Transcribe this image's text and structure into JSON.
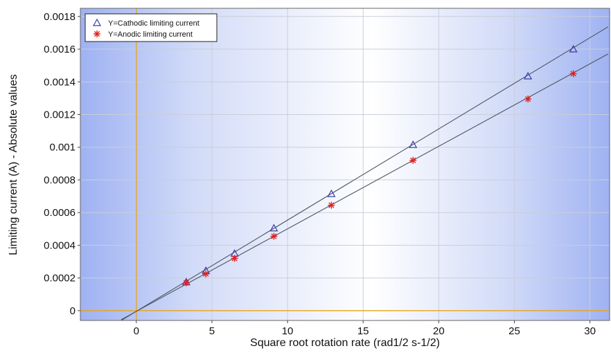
{
  "chart_data": {
    "type": "scatter",
    "xlabel": "Square root rotation rate (rad1/2 s-1/2)",
    "ylabel": "Limiting current (A) - Absolute values",
    "xlim": [
      -3.7,
      31.3
    ],
    "ylim": [
      -6e-05,
      0.00185
    ],
    "x_ticks": [
      0,
      5,
      10,
      15,
      20,
      25,
      30
    ],
    "y_ticks": [
      0,
      0.0002,
      0.0004,
      0.0006,
      0.0008,
      0.001,
      0.0012,
      0.0014,
      0.0016,
      0.0018
    ],
    "y_tick_labels": [
      "0",
      "0.0002",
      "0.0004",
      "0.0006",
      "0.0008",
      "0.001",
      "0.0012",
      "0.0014",
      "0.0016",
      "0.0018"
    ],
    "grid": true,
    "legend_position": "top-left",
    "series": [
      {
        "name": "Y=Cathodic limiting current",
        "marker": "triangle",
        "color": "#3a3aa8",
        "x": [
          3.3,
          4.6,
          6.5,
          9.1,
          12.9,
          18.3,
          25.9,
          28.9
        ],
        "y": [
          0.000175,
          0.000245,
          0.00035,
          0.000505,
          0.000715,
          0.001015,
          0.001435,
          0.0016
        ],
        "fit": {
          "x_range": [
            -1.0,
            31.2
          ],
          "slope": 5.58e-05,
          "intercept": -4e-06
        }
      },
      {
        "name": "Y=Anodic limiting current",
        "marker": "asterisk",
        "color": "#e02020",
        "x": [
          3.3,
          4.6,
          6.5,
          9.1,
          12.9,
          18.3,
          25.9,
          28.9
        ],
        "y": [
          0.00017,
          0.000225,
          0.00032,
          0.000455,
          0.000645,
          0.00092,
          0.001295,
          0.00145
        ],
        "fit": {
          "x_range": [
            -1.0,
            31.2
          ],
          "slope": 5.05e-05,
          "intercept": -4.4e-06
        }
      }
    ],
    "colors": {
      "zero_line": "#e8a317",
      "fit_line": "#4a5560",
      "grid": "#c9ced8",
      "bg_edge": "#9db0f0",
      "bg_center": "#ffffff"
    }
  }
}
